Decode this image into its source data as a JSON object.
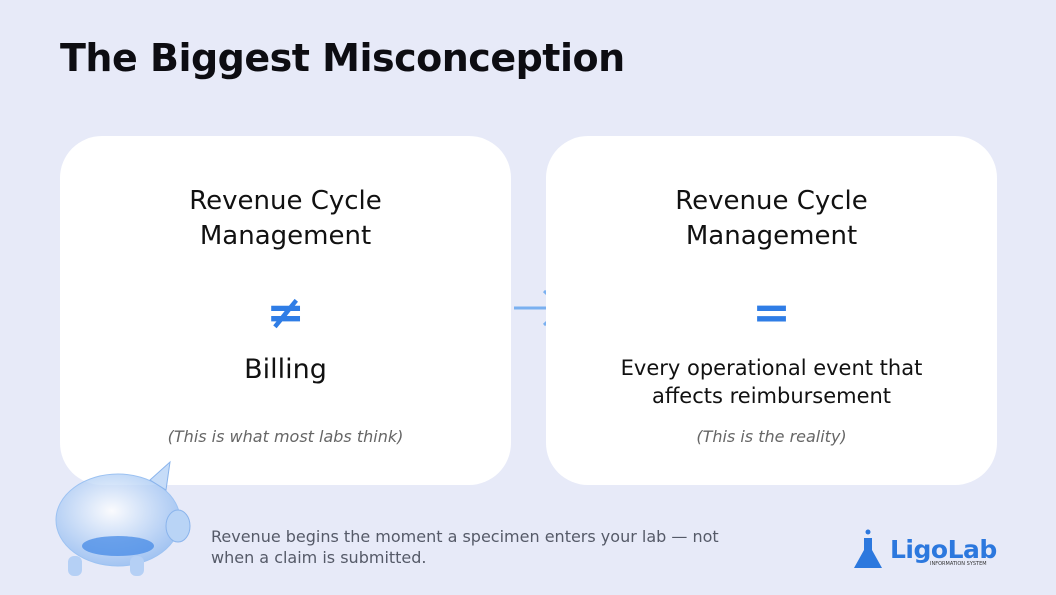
{
  "title": "The Biggest Misconception",
  "cards": [
    {
      "heading": "Revenue Cycle Management",
      "symbol": "≠",
      "body": "Billing",
      "note": "(This is what most labs think)"
    },
    {
      "heading": "Revenue Cycle Management",
      "symbol": "=",
      "body": "Every operational event that affects reimbursement",
      "note": "(This is the reality)"
    }
  ],
  "footer": "Revenue begins the moment a specimen enters your lab — not when a claim is submitted.",
  "logo": {
    "name": "LigoLab",
    "tagline": "INFORMATION SYSTEM"
  }
}
